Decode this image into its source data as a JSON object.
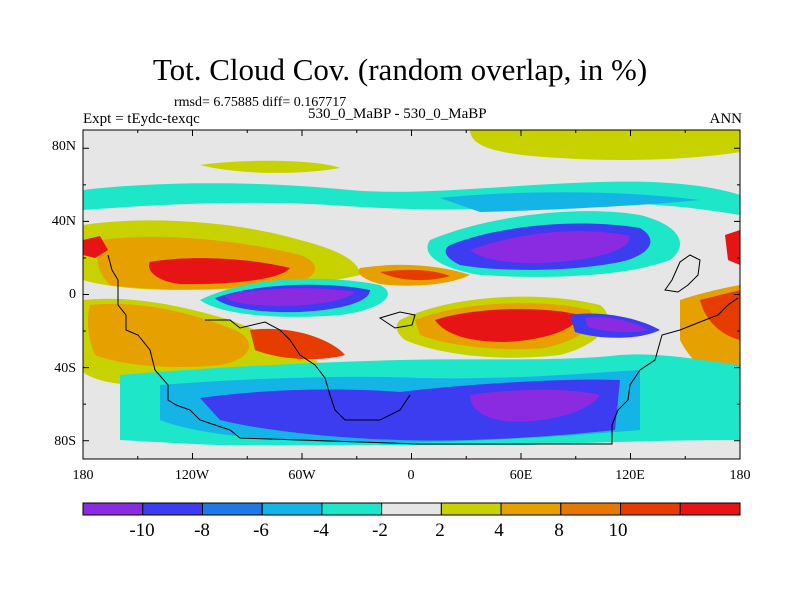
{
  "title": "Tot. Cloud Cov. (random overlap, in %)",
  "stats": "rmsd= 6.75885 diff= 0.167717",
  "expt": "Expt = tEydc-texqc",
  "center_label": "530_0_MaBP - 530_0_MaBP",
  "season": "ANN",
  "lat_ticks": [
    "80N",
    "40N",
    "0",
    "40S",
    "80S"
  ],
  "lon_ticks": [
    "180",
    "120W",
    "60W",
    "0",
    "60E",
    "120E",
    "180"
  ],
  "colorbar": {
    "colors": [
      "#8a2be2",
      "#3c3cf0",
      "#1e78e6",
      "#14b4e6",
      "#1ee6c8",
      "#e6e6e6",
      "#c8d200",
      "#e6a000",
      "#e67800",
      "#e63c00",
      "#e61414"
    ],
    "labels": [
      "-10",
      "-8",
      "-6",
      "-4",
      "-2",
      "2",
      "4",
      "8",
      "10"
    ]
  },
  "chart_data": {
    "type": "heatmap",
    "projection": "cylindrical equidistant",
    "xlim": [
      -180,
      180
    ],
    "ylim": [
      -90,
      90
    ],
    "levels": [
      -10,
      -8,
      -6,
      -4,
      -2,
      2,
      4,
      8,
      10
    ],
    "units": "%",
    "regions": [
      {
        "name": "strong negative band over tropical east Pacific",
        "approx_lon": [
          -100,
          -20
        ],
        "approx_lat": [
          -5,
          5
        ],
        "value": -10
      },
      {
        "name": "strong negative band over subtropical Tethys/Asia",
        "approx_lon": [
          30,
          120
        ],
        "approx_lat": [
          15,
          35
        ],
        "value": -10
      },
      {
        "name": "negative band over southern Gondwana",
        "approx_lon": [
          -40,
          110
        ],
        "approx_lat": [
          -80,
          -50
        ],
        "value": -8
      },
      {
        "name": "positive band north Pacific",
        "approx_lon": [
          -140,
          -80
        ],
        "approx_lat": [
          0,
          20
        ],
        "value": 10
      },
      {
        "name": "positive band tropical Gondwana",
        "approx_lon": [
          10,
          90
        ],
        "approx_lat": [
          -20,
          -5
        ],
        "value": 10
      },
      {
        "name": "positive Arctic cap",
        "approx_lon": [
          40,
          180
        ],
        "approx_lat": [
          75,
          90
        ],
        "value": 3
      }
    ]
  }
}
